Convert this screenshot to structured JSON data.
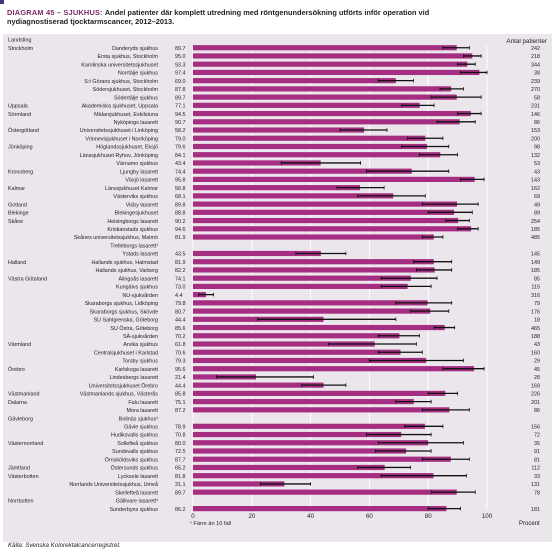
{
  "figure": {
    "diagram_label": "DIAGRAM 45 – SJUKHUS:",
    "title_rest": "Andel patienter där komplett utredning med röntgenundersökning utförts inför operation vid",
    "title_line2": "nydiagnostiserad tjocktarmscancer, 2012–2013.",
    "count_header": "Antal patienter",
    "footnote": "¹ Färre än 10 fall",
    "x_unit": "Procent",
    "source": "Källa: Svenska Kolorektalcancerregistret."
  },
  "colors": {
    "bar": "#a62e82",
    "panel": "#ebe6ec",
    "title_accent": "#7a2a61"
  },
  "chart_data": {
    "type": "bar",
    "orientation": "horizontal",
    "xlabel": "Procent",
    "xlim": [
      0,
      100
    ],
    "xticks": [
      0,
      20,
      40,
      60,
      80,
      100
    ],
    "grid": true,
    "rows": [
      {
        "region": "Landsting",
        "hospital": "",
        "value": null,
        "count": "",
        "low": null,
        "high": null
      },
      {
        "region": "Stockholm",
        "hospital": "Danderyds sjukhus",
        "value": 89.7,
        "count": "242",
        "low": 85,
        "high": 94
      },
      {
        "region": "",
        "hospital": "Ersta sjukhus, Stockholm",
        "value": 95.0,
        "count": "218",
        "low": 92,
        "high": 98
      },
      {
        "region": "",
        "hospital": "Karolinska universitetssjukhuset",
        "value": 93.3,
        "count": "344",
        "low": 90,
        "high": 96
      },
      {
        "region": "",
        "hospital": "Norrtälje sjukhus",
        "value": 97.4,
        "count": "38",
        "low": 91,
        "high": 100
      },
      {
        "region": "",
        "hospital": "S:t Görans sjukhus, Stockholm",
        "value": 69.0,
        "count": "239",
        "low": 63,
        "high": 75
      },
      {
        "region": "",
        "hospital": "Södersjukhuset, Stockholm",
        "value": 87.8,
        "count": "270",
        "low": 84,
        "high": 92
      },
      {
        "region": "",
        "hospital": "Södertälje sjukhus",
        "value": 89.7,
        "count": "58",
        "low": 81,
        "high": 98
      },
      {
        "region": "Uppsala",
        "hospital": "Akademiska sjukhuset, Uppsala",
        "value": 77.1,
        "count": "231",
        "low": 71,
        "high": 82
      },
      {
        "region": "Sörmland",
        "hospital": "Mälarsjukhuset, Eskilstuna",
        "value": 94.5,
        "count": "146",
        "low": 90,
        "high": 98
      },
      {
        "region": "",
        "hospital": "Nyköpings lasarett",
        "value": 90.7,
        "count": "86",
        "low": 83,
        "high": 96
      },
      {
        "region": "Östergötland",
        "hospital": "Universitetssjukhuset i Linköping",
        "value": 58.2,
        "count": "153",
        "low": 50,
        "high": 66
      },
      {
        "region": "",
        "hospital": "Vrinnevisjukhuset i Norrköping",
        "value": 79.0,
        "count": "200",
        "low": 73,
        "high": 85
      },
      {
        "region": "Jönköping",
        "hospital": "Höglandssjukhuset, Eksjö",
        "value": 79.6,
        "count": "98",
        "low": 71,
        "high": 87
      },
      {
        "region": "",
        "hospital": "Länssjukhuset Ryhov, Jönköping",
        "value": 84.1,
        "count": "132",
        "low": 77,
        "high": 90
      },
      {
        "region": "",
        "hospital": "Värnamo sjukhus",
        "value": 43.4,
        "count": "53",
        "low": 30,
        "high": 57
      },
      {
        "region": "Kronoberg",
        "hospital": "Ljungby lasarett",
        "value": 74.4,
        "count": "43",
        "low": 59,
        "high": 87
      },
      {
        "region": "",
        "hospital": "Växjö lasarett",
        "value": 95.8,
        "count": "143",
        "low": 91,
        "high": 99
      },
      {
        "region": "Kalmar",
        "hospital": "Länssjukhuset Kalmar",
        "value": 56.8,
        "count": "162",
        "low": 49,
        "high": 65
      },
      {
        "region": "",
        "hospital": "Västerviks sjukhus",
        "value": 68.1,
        "count": "69",
        "low": 56,
        "high": 79
      },
      {
        "region": "Gotland",
        "hospital": "Visby lasarett",
        "value": 89.8,
        "count": "49",
        "low": 78,
        "high": 97
      },
      {
        "region": "Blekinge",
        "hospital": "Blekingesjukhuset",
        "value": 88.8,
        "count": "89",
        "low": 80,
        "high": 95
      },
      {
        "region": "Skåne",
        "hospital": "Helsingborgs lasarett",
        "value": 90.2,
        "count": "254",
        "low": 86,
        "high": 94
      },
      {
        "region": "",
        "hospital": "Kristianstads sjukhus",
        "value": 94.6,
        "count": "185",
        "low": 90,
        "high": 97
      },
      {
        "region": "",
        "hospital": "Skånes universitetssjukhus, Malmö",
        "value": 81.9,
        "count": "485",
        "low": 78,
        "high": 85
      },
      {
        "region": "",
        "hospital": "Trelleborgs lasarett¹",
        "value": null,
        "count": "",
        "low": null,
        "high": null
      },
      {
        "region": "",
        "hospital": "Ystads lasarett",
        "value": 43.5,
        "count": "145",
        "low": 35,
        "high": 52
      },
      {
        "region": "Halland",
        "hospital": "Hallands sjukhus, Halmstad",
        "value": 81.9,
        "count": "149",
        "low": 75,
        "high": 88
      },
      {
        "region": "",
        "hospital": "Hallands sjukhus, Varberg",
        "value": 82.2,
        "count": "185",
        "low": 76,
        "high": 88
      },
      {
        "region": "Västra Götaland",
        "hospital": "Alingsås lasarett",
        "value": 74.1,
        "count": "85",
        "low": 64,
        "high": 83
      },
      {
        "region": "",
        "hospital": "Kungälvs sjukhus",
        "value": 73.0,
        "count": "115",
        "low": 64,
        "high": 81
      },
      {
        "region": "",
        "hospital": "NU-sjukvården",
        "value": 4.4,
        "count": "316",
        "low": 2,
        "high": 7
      },
      {
        "region": "",
        "hospital": "Skaraborgs sjukhus, Lidköping",
        "value": 79.8,
        "count": "79",
        "low": 69,
        "high": 88
      },
      {
        "region": "",
        "hospital": "Skaraborgs sjukhus, Skövde",
        "value": 80.7,
        "count": "176",
        "low": 74,
        "high": 87
      },
      {
        "region": "",
        "hospital": "SU Sahlgrenska, Göteborg",
        "value": 44.4,
        "count": "18",
        "low": 22,
        "high": 69
      },
      {
        "region": "",
        "hospital": "SU Östra, Göteborg",
        "value": 85.6,
        "count": "465",
        "low": 82,
        "high": 89
      },
      {
        "region": "",
        "hospital": "SÄ-sjukvården",
        "value": 70.2,
        "count": "188",
        "low": 63,
        "high": 77
      },
      {
        "region": "Värmland",
        "hospital": "Arvika sjukhus",
        "value": 61.8,
        "count": "43",
        "low": 46,
        "high": 76
      },
      {
        "region": "",
        "hospital": "Centralsjukhuset i Karlstad",
        "value": 70.6,
        "count": "160",
        "low": 63,
        "high": 78
      },
      {
        "region": "",
        "hospital": "Torsby sjukhus",
        "value": 79.3,
        "count": "29",
        "low": 60,
        "high": 92
      },
      {
        "region": "Örebro",
        "hospital": "Karlskoga lasarett",
        "value": 95.6,
        "count": "45",
        "low": 85,
        "high": 99
      },
      {
        "region": "",
        "hospital": "Lindesbergs lasarett",
        "value": 21.4,
        "count": "28",
        "low": 8,
        "high": 41
      },
      {
        "region": "",
        "hospital": "Universitetssjukhuset Örebro",
        "value": 44.4,
        "count": "169",
        "low": 37,
        "high": 52
      },
      {
        "region": "Västmanland",
        "hospital": "Västmanlands sjukhus, Västerås",
        "value": 85.8,
        "count": "226",
        "low": 80,
        "high": 90
      },
      {
        "region": "Dalarna",
        "hospital": "Falu lasarett",
        "value": 75.1,
        "count": "201",
        "low": 69,
        "high": 81
      },
      {
        "region": "",
        "hospital": "Mora lasarett",
        "value": 87.2,
        "count": "86",
        "low": 78,
        "high": 94
      },
      {
        "region": "Gävleborg",
        "hospital": "Bollnäs sjukhus¹",
        "value": null,
        "count": "",
        "low": null,
        "high": null
      },
      {
        "region": "",
        "hospital": "Gävle sjukhus",
        "value": 78.9,
        "count": "156",
        "low": 72,
        "high": 85
      },
      {
        "region": "",
        "hospital": "Hudiksvalls sjukhus",
        "value": 70.8,
        "count": "72",
        "low": 59,
        "high": 81
      },
      {
        "region": "Västernorrland",
        "hospital": "Sollefteå sjukhus",
        "value": 80.0,
        "count": "35",
        "low": 63,
        "high": 92
      },
      {
        "region": "",
        "hospital": "Sundsvalls sjukhus",
        "value": 72.5,
        "count": "91",
        "low": 62,
        "high": 81
      },
      {
        "region": "",
        "hospital": "Örnsköldsviks sjukhus",
        "value": 87.7,
        "count": "81",
        "low": 78,
        "high": 94
      },
      {
        "region": "Jämtland",
        "hospital": "Östersunds sjukhus",
        "value": 65.2,
        "count": "112",
        "low": 56,
        "high": 74
      },
      {
        "region": "Västerbotten",
        "hospital": "Lycksele lasarett",
        "value": 81.8,
        "count": "33",
        "low": 64,
        "high": 93
      },
      {
        "region": "",
        "hospital": "Norrlands Universitetssjukhus, Umeå",
        "value": 31.1,
        "count": "131",
        "low": 23,
        "high": 40
      },
      {
        "region": "",
        "hospital": "Skellefteå lasarett",
        "value": 89.7,
        "count": "78",
        "low": 81,
        "high": 96
      },
      {
        "region": "Norrbotten",
        "hospital": "Gällivare lasarett¹",
        "value": null,
        "count": "",
        "low": null,
        "high": null
      },
      {
        "region": "",
        "hospital": "Sunderbyns sjukhus",
        "value": 86.2,
        "count": "181",
        "low": 80,
        "high": 91
      }
    ]
  }
}
